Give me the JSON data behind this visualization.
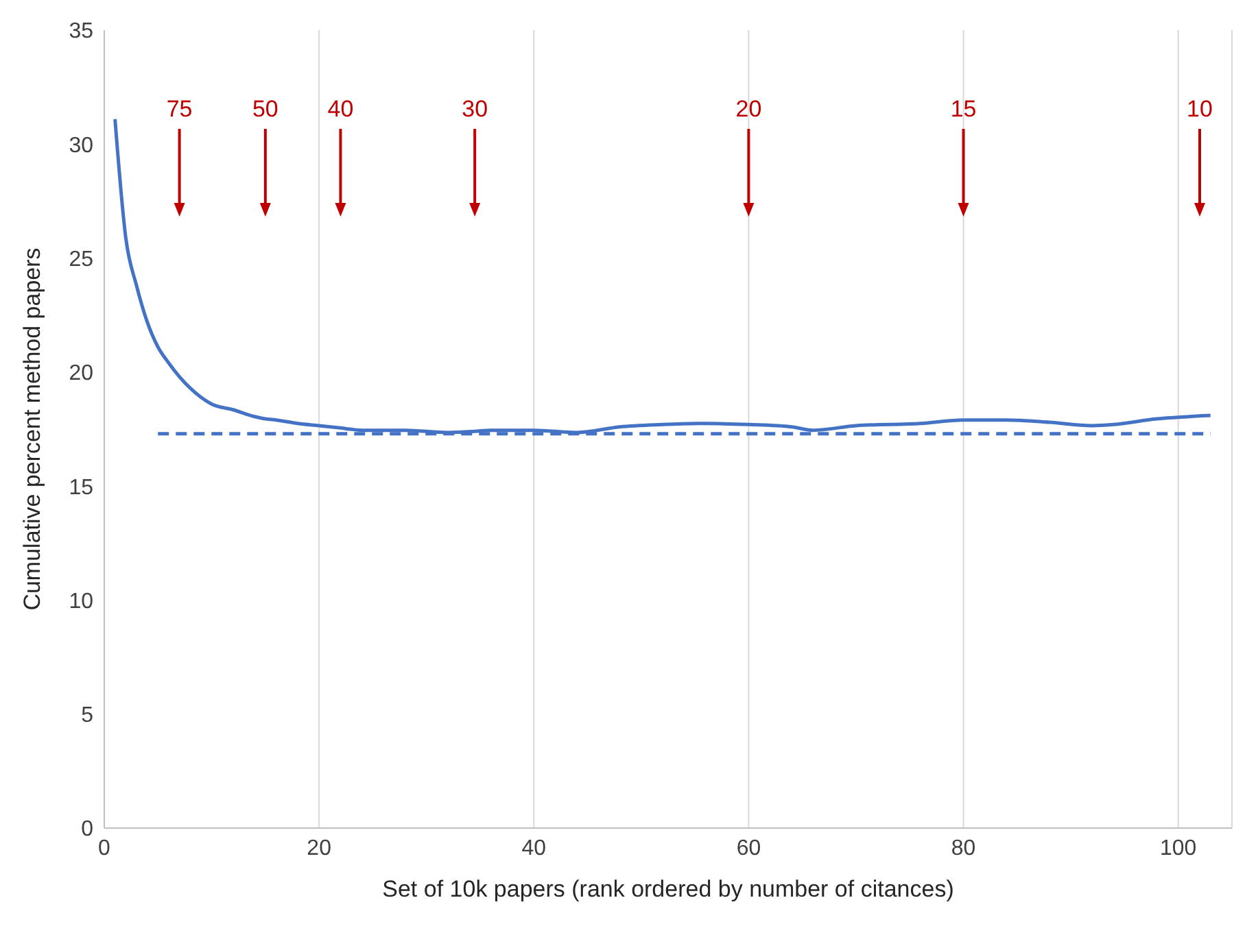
{
  "chart_data": {
    "type": "line",
    "xlabel": "Set of 10k papers (rank ordered by number of citances)",
    "ylabel": "Cumulative percent method papers",
    "xlim": [
      0,
      105
    ],
    "xticks": [
      0,
      20,
      40,
      60,
      80,
      100
    ],
    "ylim": [
      0,
      35
    ],
    "yticks": [
      0,
      5,
      10,
      15,
      20,
      25,
      30,
      35
    ],
    "grid": "x",
    "legend": false,
    "marker": "none",
    "series": [
      {
        "color": "#4472c4",
        "line_style": "solid",
        "x": [
          1,
          2,
          3,
          4,
          5,
          6,
          7,
          8,
          9,
          10,
          12,
          14,
          15,
          16,
          18,
          20,
          22,
          24,
          28,
          32,
          34.5,
          36,
          40,
          44,
          48,
          52,
          56,
          60,
          64,
          66,
          70,
          76,
          80,
          84,
          88,
          92,
          94,
          98,
          101,
          102,
          103
        ],
        "values": [
          31.1,
          25.9,
          23.8,
          22.2,
          21.1,
          20.4,
          19.8,
          19.3,
          18.9,
          18.6,
          18.35,
          18.05,
          17.95,
          17.9,
          17.75,
          17.65,
          17.55,
          17.45,
          17.45,
          17.35,
          17.4,
          17.45,
          17.45,
          17.35,
          17.6,
          17.7,
          17.75,
          17.7,
          17.6,
          17.45,
          17.65,
          17.75,
          17.9,
          17.9,
          17.8,
          17.65,
          17.7,
          17.95,
          18.05,
          18.08,
          18.1
        ]
      },
      {
        "color": "#4472c4",
        "line_style": "dashed",
        "x": [
          5,
          103
        ],
        "values": [
          17.3,
          17.3
        ]
      }
    ],
    "annotations": [
      {
        "text": "75",
        "x": 7
      },
      {
        "text": "50",
        "x": 15
      },
      {
        "text": "40",
        "x": 22
      },
      {
        "text": "30",
        "x": 34.5
      },
      {
        "text": "20",
        "x": 60
      },
      {
        "text": "15",
        "x": 80
      },
      {
        "text": "10",
        "x": 102
      }
    ]
  }
}
